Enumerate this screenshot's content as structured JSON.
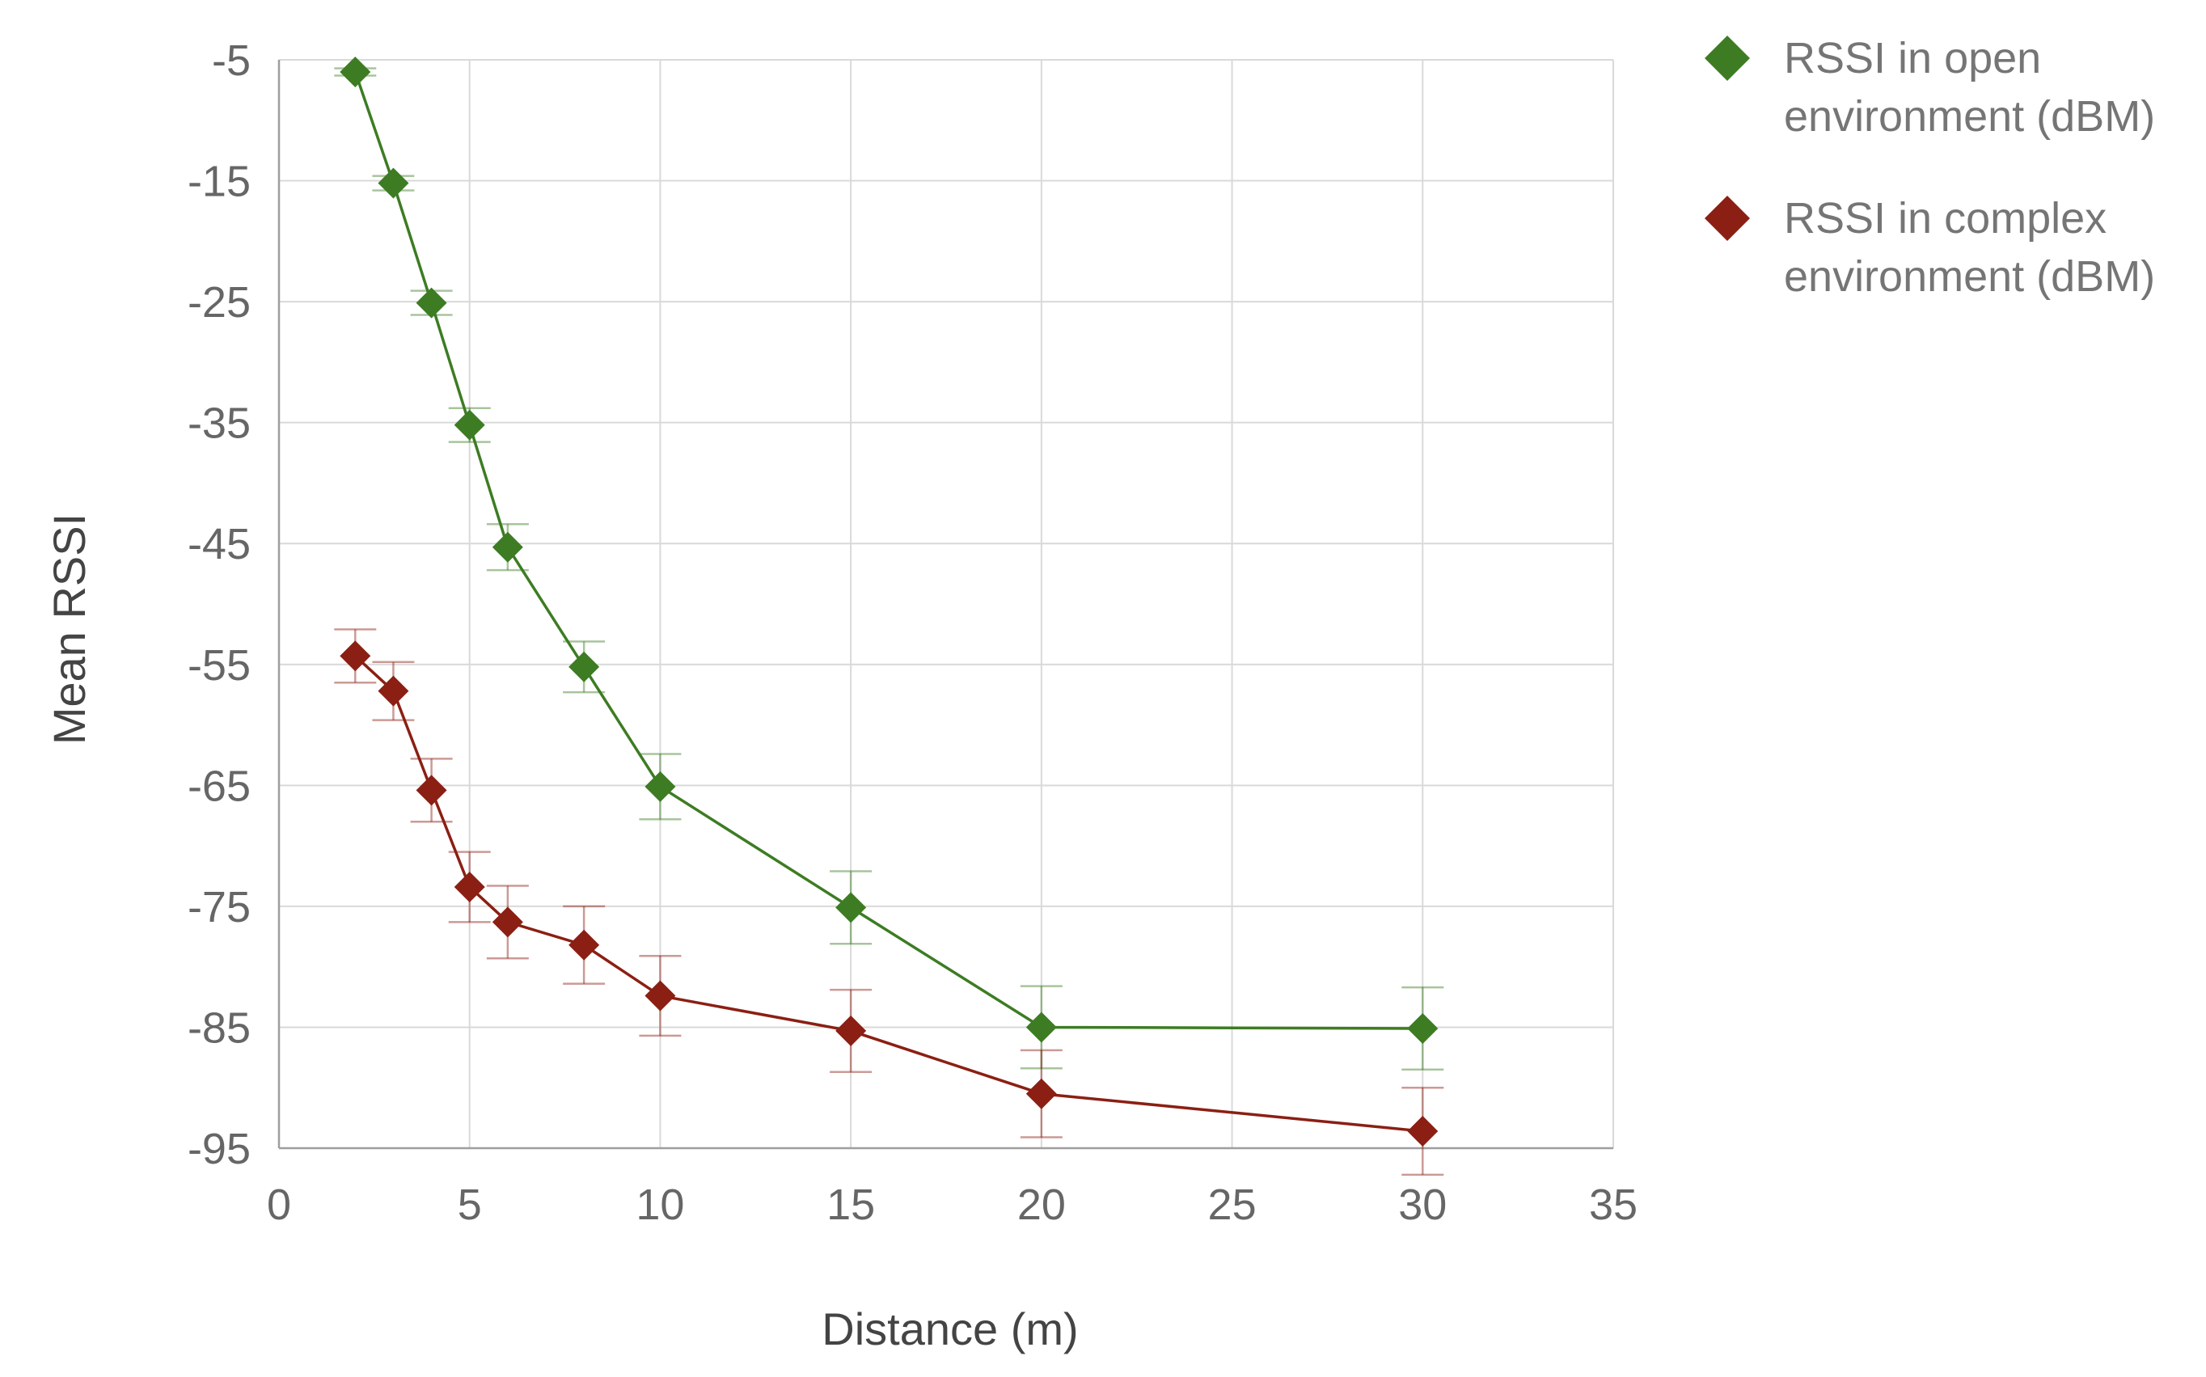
{
  "chart_data": {
    "type": "scatter",
    "title": "",
    "xlabel": "Distance (m)",
    "ylabel": "Mean RSSI",
    "xlim": [
      0,
      35
    ],
    "ylim": [
      -95,
      -5
    ],
    "x_ticks": [
      0,
      5,
      10,
      15,
      20,
      25,
      30,
      35
    ],
    "y_ticks": [
      -5,
      -15,
      -25,
      -35,
      -45,
      -55,
      -65,
      -75,
      -85,
      -95
    ],
    "grid": true,
    "legend_position": "right",
    "lines_connect_points": true,
    "error_bars": true,
    "series": [
      {
        "name": "RSSI in open environment (dBM)",
        "name_lines": [
          "RSSI in open",
          "environment (dBM)"
        ],
        "color": "#3d7c23",
        "marker": "diamond",
        "x": [
          2,
          3,
          4,
          5,
          6,
          8,
          10,
          15,
          20,
          30
        ],
        "y": [
          -6,
          -15.2,
          -25.1,
          -35.2,
          -45.3,
          -55.2,
          -65.1,
          -75.1,
          -85.0,
          -85.1
        ],
        "error": [
          0.3,
          0.6,
          1.0,
          1.4,
          1.9,
          2.1,
          2.7,
          3.0,
          3.4,
          3.4
        ]
      },
      {
        "name": "RSSI in complex environment (dBM)",
        "name_lines": [
          "RSSI in complex",
          "environment (dBM)"
        ],
        "color": "#8b1f13",
        "marker": "diamond",
        "x": [
          2,
          3,
          4,
          5,
          6,
          8,
          10,
          15,
          20,
          30
        ],
        "y": [
          -54.3,
          -57.2,
          -65.4,
          -73.4,
          -76.3,
          -78.2,
          -82.4,
          -85.3,
          -90.5,
          -93.6
        ],
        "error": [
          2.2,
          2.4,
          2.6,
          2.9,
          3.0,
          3.2,
          3.3,
          3.4,
          3.6,
          3.6
        ]
      }
    ]
  }
}
